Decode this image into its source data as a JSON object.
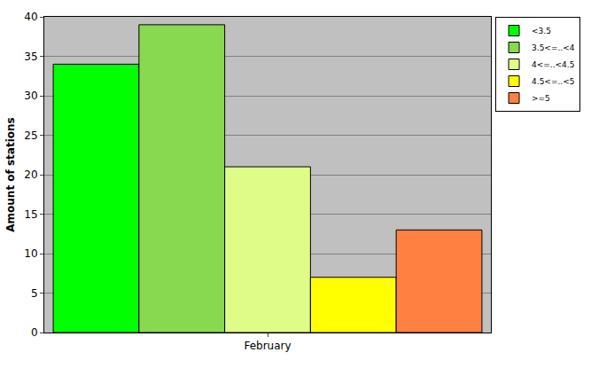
{
  "chart_data": {
    "type": "bar",
    "ylabel": "Amount of stations",
    "categories": [
      "February"
    ],
    "series": [
      {
        "name": "<3.5",
        "color": "#00ff00",
        "values": [
          34
        ]
      },
      {
        "name": "3.5<=..<4",
        "color": "#88d850",
        "values": [
          39
        ]
      },
      {
        "name": "4<=..<4.5",
        "color": "#e0fc88",
        "values": [
          21
        ]
      },
      {
        "name": "4.5<=..<5",
        "color": "#ffff00",
        "values": [
          7
        ]
      },
      {
        "name": ">=5",
        "color": "#ff8040",
        "values": [
          13
        ]
      }
    ],
    "ylim": [
      0,
      40
    ],
    "yticks": [
      0,
      5,
      10,
      15,
      20,
      25,
      30,
      35,
      40
    ],
    "grid": true,
    "legend": "top right"
  }
}
